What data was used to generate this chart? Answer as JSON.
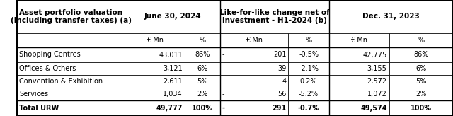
{
  "title_col": "Asset portfolio valuation\n(including transfer taxes) (a)",
  "header1": [
    "June 30, 2024",
    "Like-for-like change net of\ninvestment - H1-2024 (b)",
    "Dec. 31, 2023"
  ],
  "header2": [
    "€ Mn",
    "%",
    "€ Mn",
    "%",
    "€ Mn",
    "%"
  ],
  "rows": [
    [
      "Shopping Centres",
      "43,011",
      "86%",
      "-",
      "201",
      "-0.5%",
      "42,775",
      "86%"
    ],
    [
      "Offices & Others",
      "3,121",
      "6%",
      "-",
      "39",
      "-2.1%",
      "3,155",
      "6%"
    ],
    [
      "Convention & Exhibition",
      "2,611",
      "5%",
      "",
      "4",
      "0.2%",
      "2,572",
      "5%"
    ],
    [
      "Services",
      "1,034",
      "2%",
      "-",
      "56",
      "-5.2%",
      "1,072",
      "2%"
    ]
  ],
  "total_row": [
    "Total URW",
    "49,777",
    "100%",
    "-",
    "291",
    "-0.7%",
    "49,574",
    "100%"
  ],
  "font_size": 7.0,
  "header_font_size": 7.5
}
